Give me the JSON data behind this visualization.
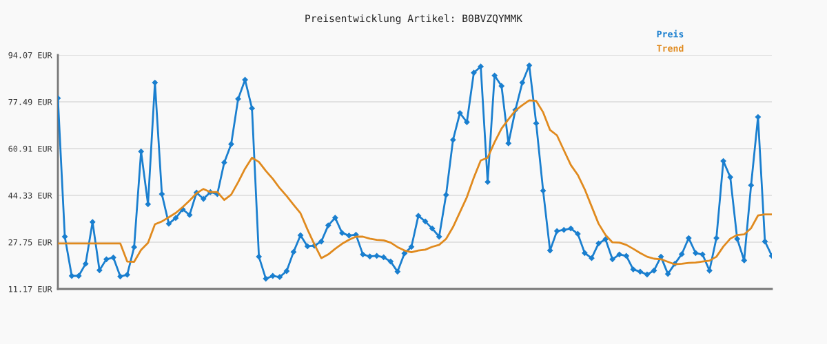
{
  "chart_data": {
    "type": "line",
    "title": "Preisentwicklung Artikel: B0BVZQYMMK",
    "categories": [
      null,
      null,
      null,
      null,
      null,
      null,
      null,
      null,
      null,
      null,
      null,
      null,
      null,
      null,
      null,
      null,
      null,
      null,
      null,
      null,
      null,
      null,
      null,
      null,
      null,
      null,
      null,
      null,
      null,
      null,
      null,
      null,
      null,
      null,
      null,
      null,
      null,
      null,
      null,
      null,
      null,
      null,
      null,
      null,
      null,
      null,
      null,
      null,
      null,
      null,
      null,
      null,
      null,
      null,
      null,
      null,
      null,
      null,
      null,
      null,
      null,
      null,
      null,
      null,
      null,
      null,
      null,
      null,
      null,
      null,
      null,
      null,
      null,
      null,
      null,
      null,
      null,
      null,
      null,
      null,
      null,
      null,
      null,
      null,
      null,
      null,
      null,
      null,
      null,
      null,
      null,
      null,
      null,
      null,
      null,
      null,
      null,
      null,
      null,
      null,
      null,
      null,
      null,
      null
    ],
    "series": [
      {
        "name": "Preis",
        "color": "#1a7fcf",
        "marker": "diamond",
        "values": [
          78.8,
          29.7,
          15.8,
          15.8,
          20.1,
          34.9,
          17.8,
          21.7,
          22.3,
          15.6,
          16.2,
          26.0,
          59.9,
          41.2,
          84.3,
          44.8,
          34.3,
          36.3,
          39.4,
          37.4,
          45.3,
          43.1,
          45.5,
          44.8,
          56.0,
          62.5,
          78.5,
          85.3,
          75.2,
          22.6,
          14.8,
          15.8,
          15.4,
          17.5,
          24.3,
          30.2,
          26.3,
          26.5,
          28.0,
          33.7,
          36.4,
          31.0,
          30.1,
          30.4,
          23.4,
          22.7,
          22.9,
          22.4,
          20.9,
          17.3,
          23.8,
          26.1,
          37.1,
          35.1,
          32.6,
          29.7,
          44.5,
          64.0,
          73.5,
          70.3,
          87.8,
          90.0,
          49.1,
          86.8,
          83.1,
          62.8,
          74.6,
          84.3,
          90.4,
          69.9,
          46.0,
          24.8,
          31.7,
          32.1,
          32.6,
          30.7,
          23.9,
          22.1,
          27.3,
          28.8,
          21.7,
          23.4,
          22.9,
          18.1,
          17.3,
          16.3,
          17.7,
          22.6,
          16.5,
          20.1,
          23.5,
          29.2,
          23.9,
          23.4,
          17.7,
          29.2,
          56.5,
          50.8,
          28.9,
          21.3,
          47.9,
          72.1,
          28.0,
          22.9
        ]
      },
      {
        "name": "Trend",
        "color": "#e08a1e",
        "marker": "none",
        "values": [
          27.3,
          27.3,
          27.3,
          27.3,
          27.3,
          27.3,
          27.3,
          27.3,
          27.3,
          27.3,
          20.9,
          20.8,
          25.0,
          27.5,
          34.1,
          35.1,
          36.6,
          38.1,
          40.2,
          42.5,
          45.1,
          46.6,
          45.5,
          45.5,
          42.7,
          44.6,
          49.0,
          53.8,
          57.7,
          56.2,
          53.0,
          50.2,
          46.9,
          44.1,
          41.0,
          38.0,
          32.3,
          27.0,
          22.1,
          23.4,
          25.4,
          27.2,
          28.6,
          29.7,
          29.7,
          29.0,
          28.6,
          28.4,
          27.6,
          26.0,
          24.8,
          24.2,
          24.8,
          25.1,
          26.1,
          26.8,
          28.9,
          33.1,
          38.4,
          43.7,
          50.6,
          56.7,
          57.7,
          63.2,
          68.0,
          71.3,
          74.4,
          76.3,
          78.0,
          77.8,
          73.8,
          67.5,
          65.6,
          60.3,
          55.1,
          51.6,
          46.5,
          40.4,
          34.3,
          30.3,
          27.7,
          27.6,
          26.8,
          25.4,
          23.9,
          22.6,
          21.9,
          21.7,
          20.8,
          19.9,
          20.1,
          20.4,
          20.5,
          20.9,
          21.2,
          22.6,
          26.2,
          29.0,
          30.3,
          30.5,
          32.7,
          37.2,
          37.6,
          37.6
        ]
      }
    ],
    "ylim": [
      11.17,
      94.07
    ],
    "yticks": [
      {
        "value": 11.17,
        "label": "11.17 EUR"
      },
      {
        "value": 27.75,
        "label": "27.75 EUR"
      },
      {
        "value": 44.33,
        "label": "44.33 EUR"
      },
      {
        "value": 60.91,
        "label": "60.91 EUR"
      },
      {
        "value": 77.49,
        "label": "77.49 EUR"
      },
      {
        "value": 94.07,
        "label": "94.07 EUR"
      }
    ],
    "grid": "y",
    "legend": "top right",
    "line_style": "solid"
  }
}
